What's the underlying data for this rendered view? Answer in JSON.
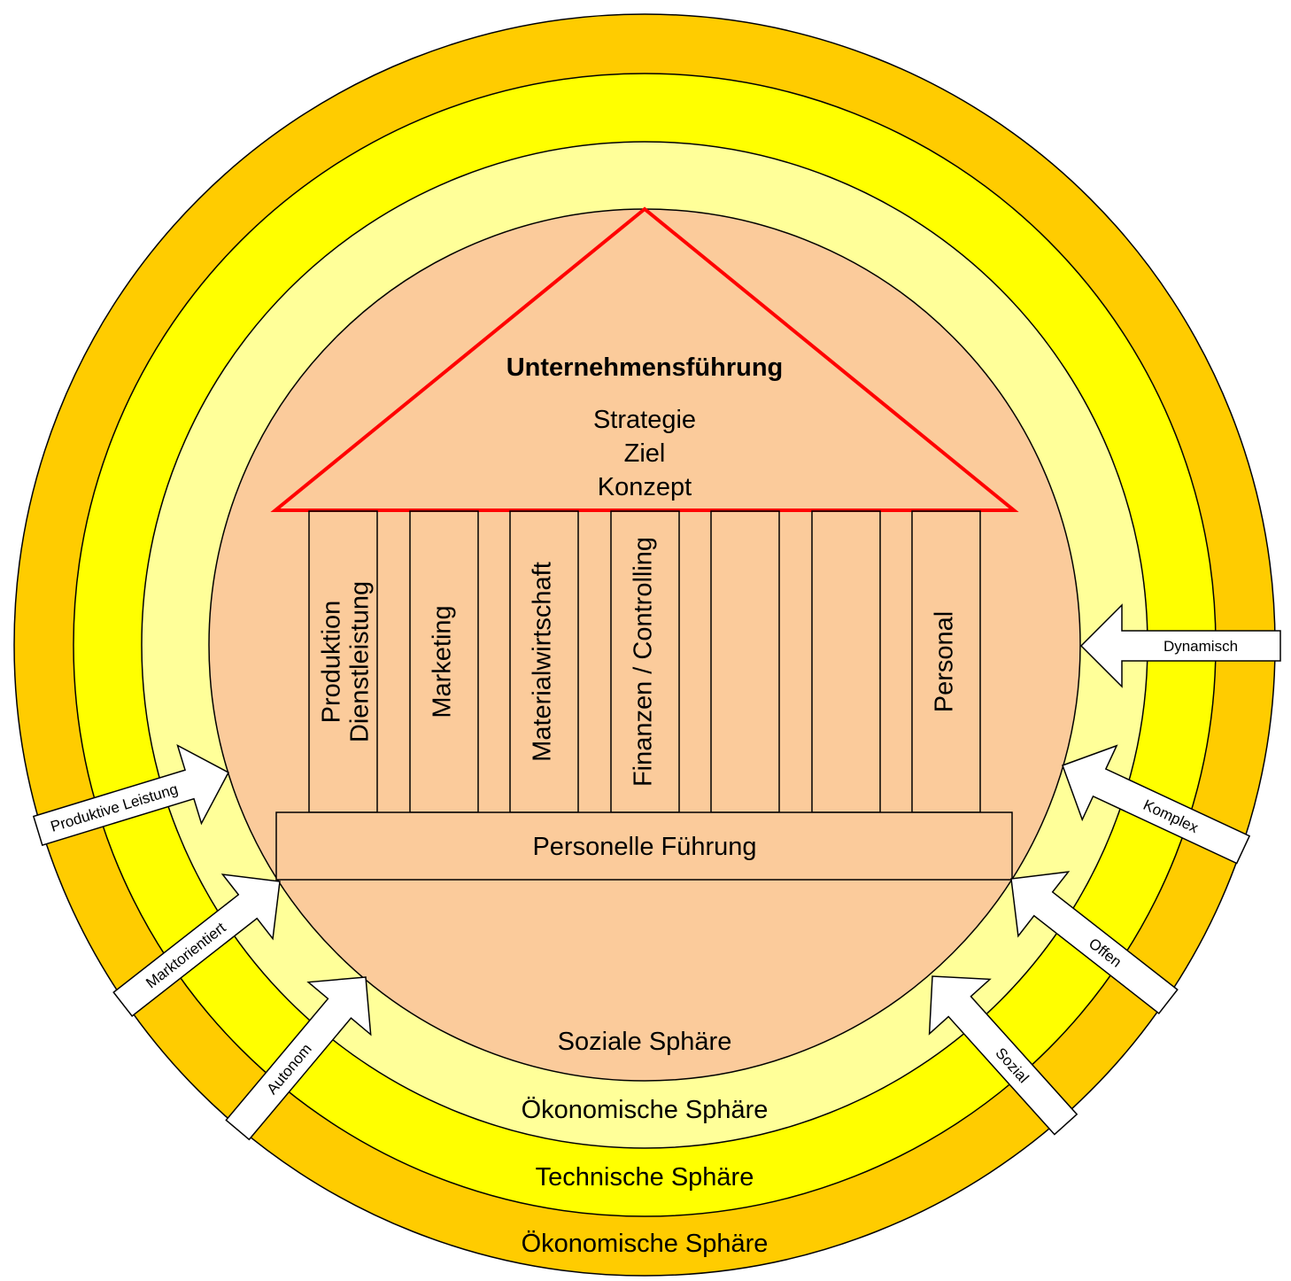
{
  "colors": {
    "outer_ring": "#ffcc00",
    "technical_ring": "#ffff00",
    "economic_ring": "#ffff99",
    "social_core": "#fbcb9b",
    "roof_line": "#ff0000",
    "arrow_fill": "#ffffff",
    "outline": "#000000"
  },
  "roof": {
    "title": "Unternehmensführung",
    "lines": [
      "Strategie",
      "Ziel",
      "Konzept"
    ]
  },
  "pillars": [
    {
      "lines": [
        "Produktion",
        "Dienstleistung"
      ]
    },
    {
      "lines": [
        "Marketing"
      ]
    },
    {
      "lines": [
        "Materialwirtschaft"
      ]
    },
    {
      "lines": [
        "Finanzen / Controlling"
      ]
    },
    {
      "lines": []
    },
    {
      "lines": []
    },
    {
      "lines": [
        "Personal"
      ]
    }
  ],
  "foundation": {
    "label": "Personelle Führung"
  },
  "spheres": {
    "social": "Soziale Sphäre",
    "economic_inner": "Ökonomische Sphäre",
    "technical": "Technische Sphäre",
    "economic_outer": "Ökonomische Sphäre"
  },
  "arrows": {
    "left": [
      "Produktive Leistung",
      "Marktorientiert",
      "Autonom"
    ],
    "right": [
      "Dynamisch",
      "Komplex",
      "Offen",
      "Sozial"
    ]
  }
}
